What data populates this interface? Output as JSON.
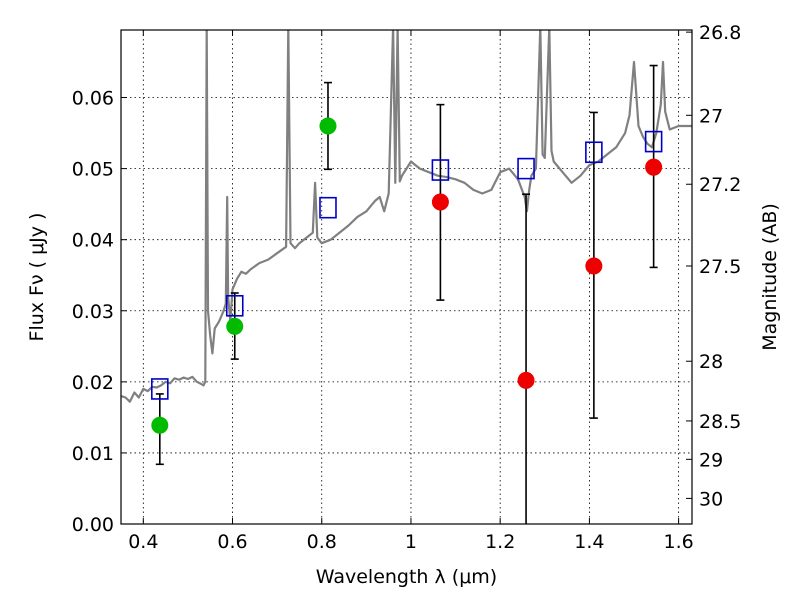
{
  "chart_data": {
    "type": "scatter",
    "xlabel": "Wavelength  λ (μm)",
    "ylabel": "Flux  Fν  ( μJy )",
    "y2label": "Magnitude (AB)",
    "xlim": [
      0.35,
      1.63
    ],
    "ylim": [
      0.0,
      0.0695
    ],
    "x_ticks": [
      0.4,
      0.6,
      0.8,
      1.0,
      1.2,
      1.4,
      1.6
    ],
    "x_tick_labels": [
      "0.4",
      "0.6",
      "0.8",
      "1",
      "1.2",
      "1.4",
      "1.6"
    ],
    "y_ticks": [
      0.0,
      0.01,
      0.02,
      0.03,
      0.04,
      0.05,
      0.06
    ],
    "y_tick_labels": [
      "0.00",
      "0.01",
      "0.02",
      "0.03",
      "0.04",
      "0.05",
      "0.06"
    ],
    "y2_ticks": [
      {
        "label": "26.8",
        "flux": 0.0692
      },
      {
        "label": "27",
        "flux": 0.0575
      },
      {
        "label": "27.2",
        "flux": 0.0478
      },
      {
        "label": "27.5",
        "flux": 0.0363
      },
      {
        "label": "28",
        "flux": 0.0229
      },
      {
        "label": "28.5",
        "flux": 0.0145
      },
      {
        "label": "29",
        "flux": 0.0091
      },
      {
        "label": "30",
        "flux": 0.0036
      }
    ],
    "grid": true,
    "colors": {
      "template": "#808080",
      "model": "#0000cc",
      "detection": "#00bb00",
      "upper": "#ee0000",
      "errorbar": "#000000"
    },
    "template_spectrum": [
      [
        0.35,
        0.018
      ],
      [
        0.36,
        0.0178
      ],
      [
        0.37,
        0.0172
      ],
      [
        0.38,
        0.0185
      ],
      [
        0.39,
        0.0178
      ],
      [
        0.4,
        0.019
      ],
      [
        0.41,
        0.0187
      ],
      [
        0.42,
        0.0193
      ],
      [
        0.43,
        0.0192
      ],
      [
        0.44,
        0.0195
      ],
      [
        0.45,
        0.02
      ],
      [
        0.46,
        0.0198
      ],
      [
        0.47,
        0.0205
      ],
      [
        0.48,
        0.0203
      ],
      [
        0.49,
        0.0206
      ],
      [
        0.5,
        0.0204
      ],
      [
        0.51,
        0.0207
      ],
      [
        0.52,
        0.02
      ],
      [
        0.53,
        0.0197
      ],
      [
        0.535,
        0.0195
      ],
      [
        0.539,
        0.02
      ],
      [
        0.542,
        0.07
      ],
      [
        0.545,
        0.03
      ],
      [
        0.55,
        0.0265
      ],
      [
        0.555,
        0.024
      ],
      [
        0.56,
        0.0275
      ],
      [
        0.57,
        0.0285
      ],
      [
        0.58,
        0.03
      ],
      [
        0.585,
        0.031
      ],
      [
        0.588,
        0.046
      ],
      [
        0.59,
        0.032
      ],
      [
        0.595,
        0.0285
      ],
      [
        0.6,
        0.033
      ],
      [
        0.61,
        0.0345
      ],
      [
        0.62,
        0.0355
      ],
      [
        0.63,
        0.0352
      ],
      [
        0.64,
        0.0358
      ],
      [
        0.66,
        0.0367
      ],
      [
        0.68,
        0.0372
      ],
      [
        0.7,
        0.0381
      ],
      [
        0.72,
        0.039
      ],
      [
        0.725,
        0.07
      ],
      [
        0.73,
        0.0395
      ],
      [
        0.74,
        0.0388
      ],
      [
        0.75,
        0.0395
      ],
      [
        0.77,
        0.0405
      ],
      [
        0.78,
        0.041
      ],
      [
        0.785,
        0.048
      ],
      [
        0.79,
        0.0403
      ],
      [
        0.8,
        0.0395
      ],
      [
        0.82,
        0.04
      ],
      [
        0.84,
        0.041
      ],
      [
        0.86,
        0.042
      ],
      [
        0.88,
        0.0432
      ],
      [
        0.9,
        0.044
      ],
      [
        0.92,
        0.0455
      ],
      [
        0.93,
        0.046
      ],
      [
        0.94,
        0.044
      ],
      [
        0.95,
        0.0465
      ],
      [
        0.96,
        0.07
      ],
      [
        0.965,
        0.048
      ],
      [
        0.97,
        0.07
      ],
      [
        0.975,
        0.0482
      ],
      [
        0.98,
        0.049
      ],
      [
        0.99,
        0.05
      ],
      [
        1.0,
        0.051
      ],
      [
        1.01,
        0.0505
      ],
      [
        1.02,
        0.05
      ],
      [
        1.04,
        0.0495
      ],
      [
        1.06,
        0.049
      ],
      [
        1.08,
        0.0488
      ],
      [
        1.1,
        0.0485
      ],
      [
        1.12,
        0.048
      ],
      [
        1.14,
        0.047
      ],
      [
        1.16,
        0.0465
      ],
      [
        1.18,
        0.047
      ],
      [
        1.2,
        0.0495
      ],
      [
        1.22,
        0.05
      ],
      [
        1.24,
        0.0485
      ],
      [
        1.255,
        0.046
      ],
      [
        1.26,
        0.044
      ],
      [
        1.265,
        0.047
      ],
      [
        1.27,
        0.049
      ],
      [
        1.28,
        0.05
      ],
      [
        1.29,
        0.07
      ],
      [
        1.295,
        0.052
      ],
      [
        1.3,
        0.0515
      ],
      [
        1.31,
        0.07
      ],
      [
        1.315,
        0.0525
      ],
      [
        1.32,
        0.051
      ],
      [
        1.34,
        0.0495
      ],
      [
        1.36,
        0.048
      ],
      [
        1.38,
        0.049
      ],
      [
        1.4,
        0.0505
      ],
      [
        1.42,
        0.051
      ],
      [
        1.44,
        0.052
      ],
      [
        1.46,
        0.053
      ],
      [
        1.48,
        0.055
      ],
      [
        1.49,
        0.0575
      ],
      [
        1.5,
        0.065
      ],
      [
        1.51,
        0.056
      ],
      [
        1.52,
        0.0545
      ],
      [
        1.53,
        0.0535
      ],
      [
        1.54,
        0.053
      ],
      [
        1.55,
        0.055
      ],
      [
        1.56,
        0.059
      ],
      [
        1.565,
        0.065
      ],
      [
        1.57,
        0.058
      ],
      [
        1.58,
        0.0555
      ],
      [
        1.6,
        0.056
      ],
      [
        1.62,
        0.056
      ],
      [
        1.63,
        0.056
      ]
    ],
    "model_points": [
      [
        0.437,
        0.019
      ],
      [
        0.605,
        0.0307
      ],
      [
        0.814,
        0.0445
      ],
      [
        1.066,
        0.0498
      ],
      [
        1.258,
        0.05
      ],
      [
        1.41,
        0.0523
      ],
      [
        1.544,
        0.0538
      ]
    ],
    "detections": [
      {
        "x": 0.437,
        "y": 0.0139,
        "err_low": 0.0084,
        "err_high": 0.0183
      },
      {
        "x": 0.605,
        "y": 0.0278,
        "err_low": 0.0232,
        "err_high": 0.0325
      },
      {
        "x": 0.814,
        "y": 0.056,
        "err_low": 0.0499,
        "err_high": 0.0621
      }
    ],
    "upper_limits": [
      {
        "x": 1.066,
        "y": 0.0453,
        "err_low": 0.0315,
        "err_high": 0.059
      },
      {
        "x": 1.258,
        "y": 0.0202,
        "err_low": 0.0,
        "err_high": 0.0464
      },
      {
        "x": 1.41,
        "y": 0.0363,
        "err_low": 0.0149,
        "err_high": 0.0579
      },
      {
        "x": 1.544,
        "y": 0.0502,
        "err_low": 0.0361,
        "err_high": 0.0645
      }
    ]
  }
}
